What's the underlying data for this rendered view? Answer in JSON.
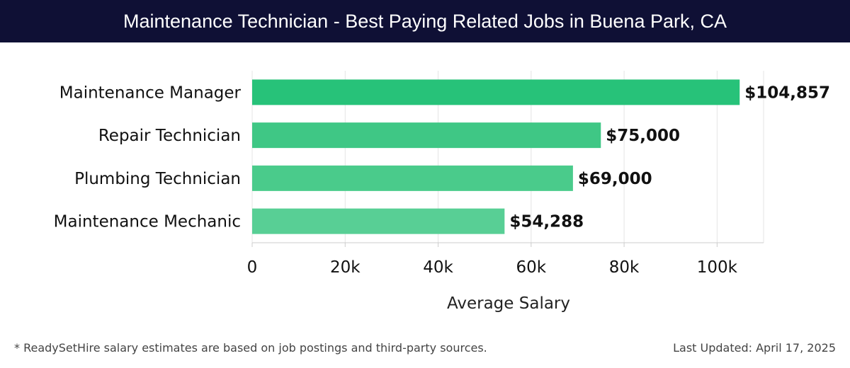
{
  "header": {
    "title": "Maintenance Technician - Best Paying Related Jobs in Buena Park, CA"
  },
  "chart_data": {
    "type": "bar",
    "orientation": "horizontal",
    "categories": [
      "Maintenance Manager",
      "Repair Technician",
      "Plumbing Technician",
      "Maintenance Mechanic"
    ],
    "values": [
      104857,
      75000,
      69000,
      54288
    ],
    "value_labels": [
      "$104,857",
      "$75,000",
      "$69,000",
      "$54,288"
    ],
    "colors": [
      "#27c279",
      "#3fc785",
      "#4acb8b",
      "#58cf95"
    ],
    "xlabel": "Average Salary",
    "ylabel": "",
    "xlim": [
      0,
      110000
    ],
    "x_ticks": [
      0,
      20000,
      40000,
      60000,
      80000,
      100000
    ],
    "x_tick_labels": [
      "0",
      "20k",
      "40k",
      "60k",
      "80k",
      "100k"
    ],
    "grid": true
  },
  "footer": {
    "note": "* ReadySetHire salary estimates are based on job postings and third-party sources.",
    "updated": "Last Updated: April 17, 2025"
  }
}
